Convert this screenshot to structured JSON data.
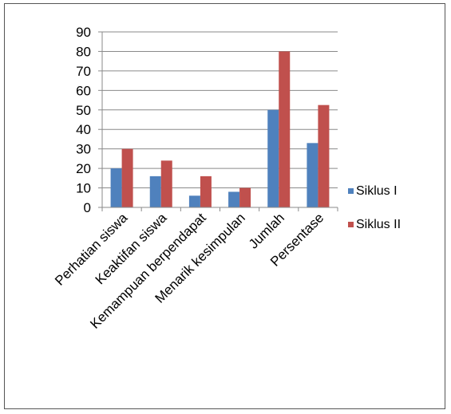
{
  "chart_data": {
    "type": "bar",
    "categories": [
      "Perhatian siswa",
      "Keaktifan siswa",
      "Kemampuan berpendapat",
      "Menarik kesimpulan",
      "Jumlah",
      "Persentase"
    ],
    "series": [
      {
        "name": "Siklus I",
        "values": [
          20,
          16,
          6,
          8,
          50,
          33
        ],
        "color": "#4f81bd"
      },
      {
        "name": "Siklus II",
        "values": [
          30,
          24,
          16,
          10,
          80,
          52.5
        ],
        "color": "#c0504d"
      }
    ],
    "ylim": [
      0,
      90
    ],
    "yticks": [
      "0",
      "10",
      "20",
      "30",
      "40",
      "50",
      "60",
      "70",
      "80",
      "90"
    ],
    "grid": true,
    "legend": "right"
  }
}
